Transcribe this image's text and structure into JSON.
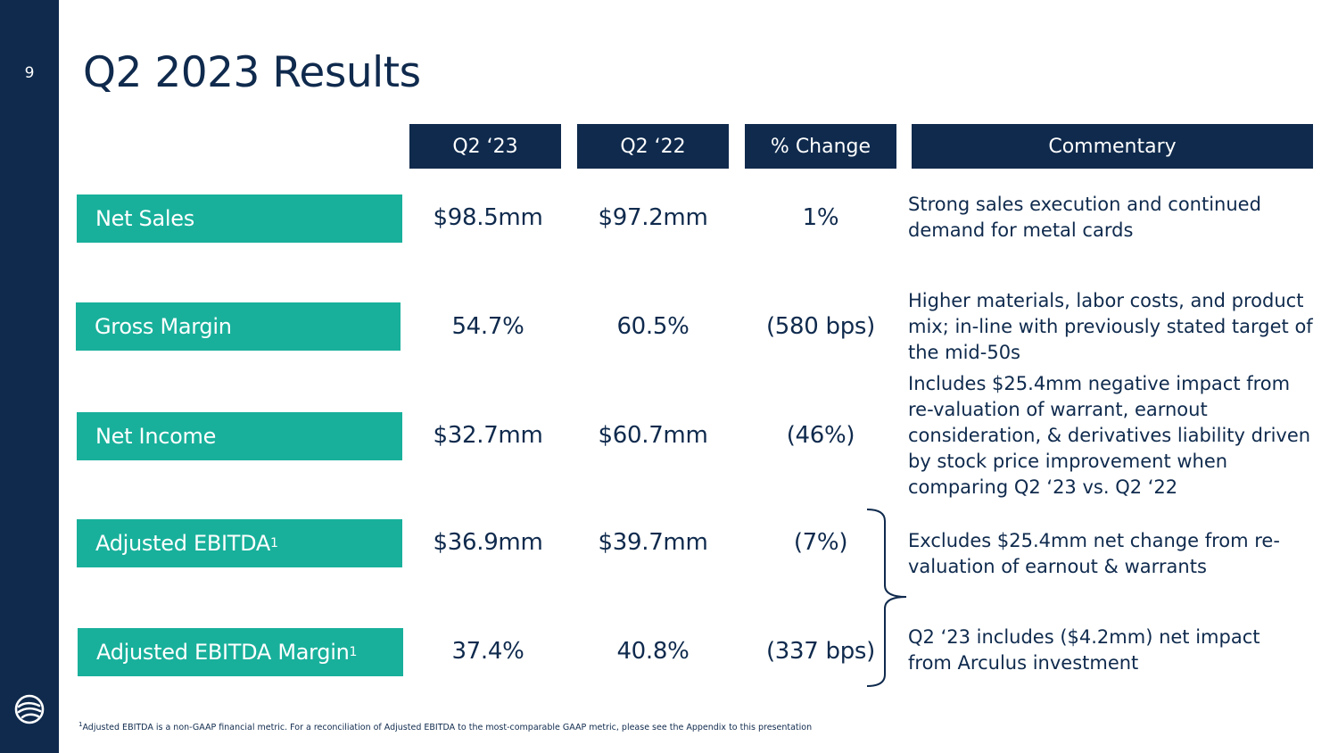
{
  "slide": {
    "page_number": "9",
    "title": "Q2 2023 Results"
  },
  "columns": {
    "q2_23": "Q2 ‘23",
    "q2_22": "Q2 ‘22",
    "change": "% Change",
    "commentary": "Commentary"
  },
  "rows": [
    {
      "label": "Net Sales",
      "q2_23": "$98.5mm",
      "q2_22": "$97.2mm",
      "change": "1%",
      "commentary": "Strong sales execution and continued demand for metal cards"
    },
    {
      "label": "Gross Margin",
      "q2_23": "54.7%",
      "q2_22": "60.5%",
      "change": "(580 bps)",
      "commentary": "Higher materials, labor costs, and product mix; in-line with previously stated target of the mid-50s"
    },
    {
      "label": "Net Income",
      "q2_23": "$32.7mm",
      "q2_22": "$60.7mm",
      "change": "(46%)",
      "commentary": "Includes $25.4mm negative impact from re-valuation of warrant, earnout consideration, & derivatives liability driven by stock price improvement when comparing Q2 ‘23 vs. Q2 ‘22"
    },
    {
      "label": "Adjusted EBITDA",
      "sup": "1",
      "q2_23": "$36.9mm",
      "q2_22": "$39.7mm",
      "change": "(7%)",
      "commentary": "Excludes $25.4mm net change from re-valuation of earnout & warrants"
    },
    {
      "label": "Adjusted EBITDA Margin",
      "sup": "1",
      "q2_23": "37.4%",
      "q2_22": "40.8%",
      "change": "(337 bps)",
      "commentary": "Q2 ‘23 includes ($4.2mm) net impact from Arculus investment"
    }
  ],
  "footnote": {
    "marker": "1",
    "text": "Adjusted EBITDA is a non-GAAP financial metric. For a reconciliation of Adjusted EBITDA to the most-comparable GAAP metric, please see the Appendix to this presentation"
  },
  "colors": {
    "navy": "#0f2a4d",
    "teal": "#18b09b"
  },
  "icons": {
    "logo": "company-logo-icon"
  }
}
